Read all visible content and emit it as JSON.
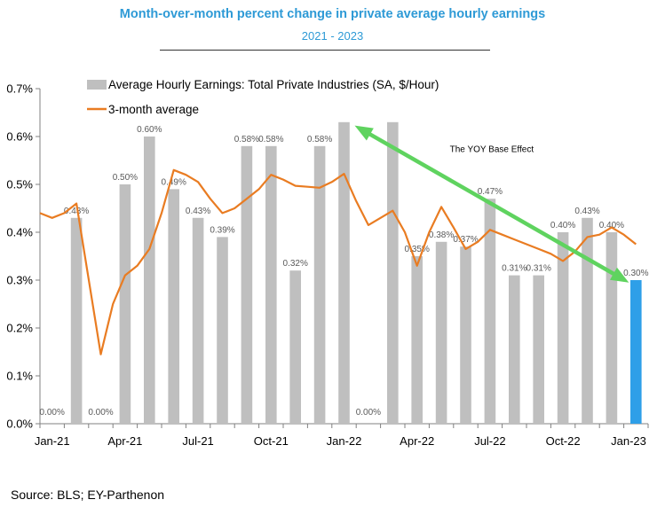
{
  "chart_data": {
    "type": "bar",
    "title": "Month-over-month percent change in private average hourly earnings",
    "subtitle": "2021 - 2023",
    "ylim": [
      0,
      0.7
    ],
    "y_ticks": [
      "0.0%",
      "0.1%",
      "0.2%",
      "0.3%",
      "0.4%",
      "0.5%",
      "0.6%",
      "0.7%"
    ],
    "x_tick_labels": [
      "Jan-21",
      "Apr-21",
      "Jul-21",
      "Oct-21",
      "Jan-22",
      "Apr-22",
      "Jul-22",
      "Oct-22",
      "Jan-23"
    ],
    "x_tick_every": 3,
    "categories": [
      "Jan-21",
      "Feb-21",
      "Mar-21",
      "Apr-21",
      "May-21",
      "Jun-21",
      "Jul-21",
      "Aug-21",
      "Sep-21",
      "Oct-21",
      "Nov-21",
      "Dec-21",
      "Jan-22",
      "Feb-22",
      "Mar-22",
      "Apr-22",
      "May-22",
      "Jun-22",
      "Jul-22",
      "Aug-22",
      "Sep-22",
      "Oct-22",
      "Nov-22",
      "Dec-22",
      "Jan-23"
    ],
    "series": [
      {
        "name": "Average Hourly Earnings: Total Private Industries (SA, $/Hour)",
        "kind": "bar",
        "color": "#bfbfbf",
        "highlight_color": "#2e9fe8",
        "highlight_index": 24,
        "values": [
          0.0,
          0.43,
          0.0,
          0.5,
          0.6,
          0.49,
          0.43,
          0.39,
          0.58,
          0.58,
          0.32,
          0.58,
          0.63,
          0.0,
          0.63,
          0.35,
          0.38,
          0.37,
          0.47,
          0.31,
          0.31,
          0.4,
          0.43,
          0.4,
          0.3
        ],
        "labels": [
          "0.00%",
          "0.43%",
          "0.00%",
          "0.50%",
          "0.60%",
          "0.49%",
          "0.43%",
          "0.39%",
          "0.58%",
          "0.58%",
          "0.32%",
          "0.58%",
          "",
          "0.00%",
          "",
          "0.35%",
          "0.38%",
          "0.37%",
          "0.47%",
          "0.31%",
          "0.31%",
          "0.40%",
          "0.43%",
          "0.40%",
          "0.30%"
        ]
      },
      {
        "name": "3-month average",
        "kind": "line",
        "color": "#e97c22",
        "x": [
          -0.5,
          0,
          0.5,
          1,
          2,
          2.5,
          3,
          3.5,
          4,
          4.5,
          5,
          5.5,
          6,
          6.5,
          7,
          7.5,
          8,
          8.5,
          9,
          9.5,
          10,
          10.5,
          11,
          11.5,
          12,
          12.5,
          13,
          13.5,
          14,
          14.5,
          15,
          15.5,
          16,
          16.5,
          17,
          17.5,
          18,
          18.5,
          19,
          19.5,
          20,
          20.5,
          21,
          21.5,
          22,
          22.5,
          23,
          23.5,
          24
        ],
        "values": [
          0.44,
          0.43,
          0.44,
          0.46,
          0.145,
          0.25,
          0.31,
          0.33,
          0.365,
          0.44,
          0.53,
          0.52,
          0.505,
          0.47,
          0.44,
          0.45,
          0.47,
          0.49,
          0.52,
          0.51,
          0.497,
          0.495,
          0.493,
          0.505,
          0.522,
          0.465,
          0.415,
          0.43,
          0.445,
          0.4,
          0.33,
          0.4,
          0.453,
          0.41,
          0.365,
          0.38,
          0.405,
          0.395,
          0.385,
          0.375,
          0.365,
          0.355,
          0.34,
          0.36,
          0.39,
          0.395,
          0.41,
          0.395,
          0.375
        ]
      }
    ],
    "annotations": [
      {
        "text": "The YOY Base Effect",
        "arrow_from_index": 12,
        "arrow_to_index": 24,
        "color": "#5fd35f"
      }
    ],
    "legend": "top-left",
    "grid": false
  },
  "source": "Source: BLS; EY-Parthenon"
}
